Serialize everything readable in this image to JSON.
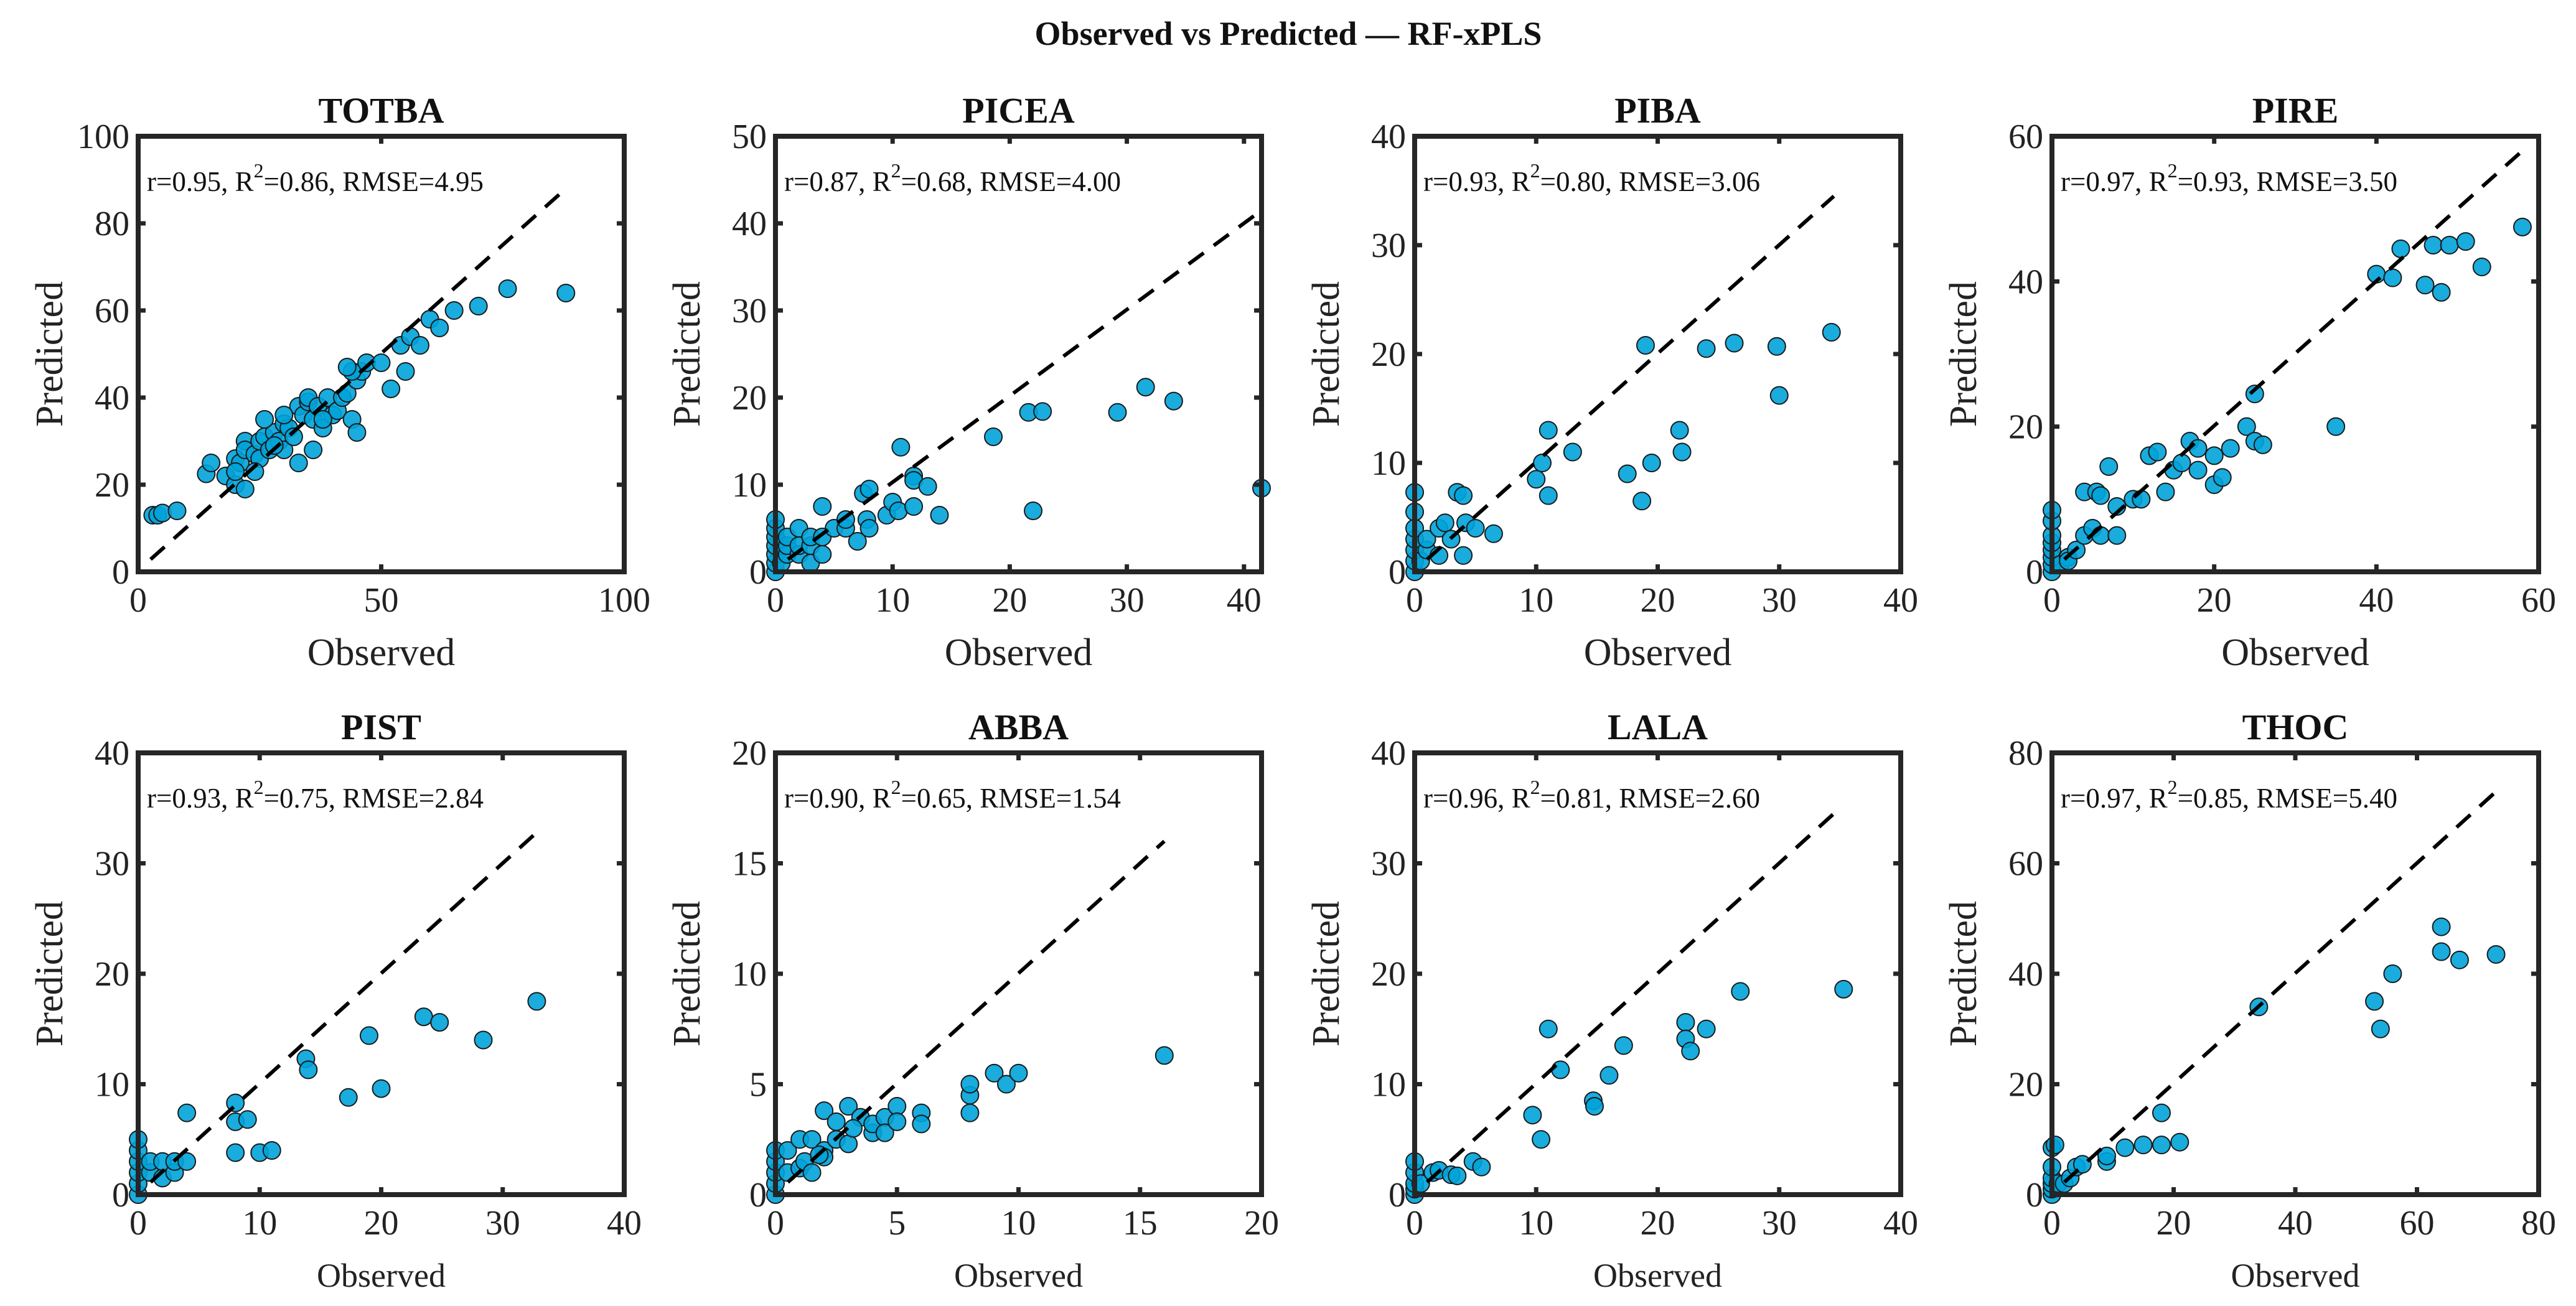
{
  "figure": {
    "title": "Observed vs Predicted — RF-xPLS",
    "xlabel": "Observed",
    "ylabel": "Predicted",
    "marker_color": "#00a3d9",
    "marker_edge": "#1a1a1a",
    "line_color": "#000000"
  },
  "chart_data": [
    {
      "type": "scatter",
      "title": "TOTBA",
      "r": "0.95",
      "r2": "0.86",
      "rmse": "4.95",
      "xlim": [
        0,
        100
      ],
      "ylim": [
        0,
        100
      ],
      "xticks": [
        0,
        50,
        100
      ],
      "yticks": [
        0,
        20,
        40,
        60,
        80,
        100
      ],
      "line_max": 87,
      "points": [
        [
          3,
          13
        ],
        [
          4,
          13
        ],
        [
          5,
          13.5
        ],
        [
          8,
          14
        ],
        [
          14,
          22.5
        ],
        [
          15,
          25
        ],
        [
          18,
          22
        ],
        [
          20,
          20
        ],
        [
          20,
          26
        ],
        [
          21,
          25
        ],
        [
          22,
          30
        ],
        [
          22,
          28
        ],
        [
          24,
          27
        ],
        [
          25,
          30
        ],
        [
          25,
          26
        ],
        [
          26,
          31
        ],
        [
          27,
          28
        ],
        [
          28,
          32
        ],
        [
          29,
          30
        ],
        [
          30,
          34
        ],
        [
          30,
          28
        ],
        [
          31,
          33
        ],
        [
          32,
          31
        ],
        [
          33,
          38
        ],
        [
          34,
          36
        ],
        [
          35,
          39
        ],
        [
          35,
          40
        ],
        [
          36,
          35
        ],
        [
          37,
          38
        ],
        [
          38,
          33
        ],
        [
          39,
          40
        ],
        [
          40,
          36
        ],
        [
          41,
          37
        ],
        [
          42,
          40
        ],
        [
          43,
          41
        ],
        [
          44,
          35
        ],
        [
          45,
          32
        ],
        [
          45,
          44
        ],
        [
          46,
          46
        ],
        [
          47,
          48
        ],
        [
          50,
          48
        ],
        [
          52,
          42
        ],
        [
          55,
          46
        ],
        [
          54,
          52
        ],
        [
          56,
          54
        ],
        [
          58,
          52
        ],
        [
          60,
          58
        ],
        [
          62,
          56
        ],
        [
          65,
          60
        ],
        [
          70,
          61
        ],
        [
          76,
          65
        ],
        [
          88,
          64
        ],
        [
          33,
          25
        ],
        [
          36,
          28
        ],
        [
          28,
          29
        ],
        [
          24,
          23
        ],
        [
          26,
          35
        ],
        [
          20,
          23
        ],
        [
          44,
          46
        ],
        [
          43,
          47
        ],
        [
          22,
          19
        ],
        [
          30,
          36
        ],
        [
          38,
          35
        ]
      ]
    },
    {
      "type": "scatter",
      "title": "PICEA",
      "r": "0.87",
      "r2": "0.68",
      "rmse": "4.00",
      "xlim": [
        0,
        41.5
      ],
      "ylim": [
        0,
        50
      ],
      "xticks": [
        0,
        10,
        20,
        30,
        40
      ],
      "yticks": [
        0,
        10,
        20,
        30,
        40,
        50
      ],
      "line_max": 41.5,
      "points": [
        [
          0,
          0
        ],
        [
          0,
          1
        ],
        [
          0,
          2
        ],
        [
          0,
          3
        ],
        [
          0,
          4
        ],
        [
          0,
          5
        ],
        [
          0,
          6
        ],
        [
          0.5,
          1
        ],
        [
          1,
          2
        ],
        [
          1,
          3
        ],
        [
          1,
          4
        ],
        [
          2,
          2
        ],
        [
          2,
          3
        ],
        [
          2,
          5
        ],
        [
          3,
          1
        ],
        [
          3,
          3
        ],
        [
          3,
          4
        ],
        [
          4,
          2
        ],
        [
          4,
          4
        ],
        [
          4,
          7.5
        ],
        [
          5,
          5
        ],
        [
          6,
          5
        ],
        [
          6,
          6
        ],
        [
          7,
          3.5
        ],
        [
          7.5,
          9
        ],
        [
          8,
          9.5
        ],
        [
          7.8,
          6
        ],
        [
          8,
          5
        ],
        [
          9.5,
          6.5
        ],
        [
          10,
          8
        ],
        [
          10.5,
          7
        ],
        [
          10.7,
          14.3
        ],
        [
          11.8,
          11
        ],
        [
          11.8,
          10.5
        ],
        [
          11.8,
          7.5
        ],
        [
          13,
          9.8
        ],
        [
          14,
          6.5
        ],
        [
          18.6,
          15.5
        ],
        [
          21.6,
          18.3
        ],
        [
          22.8,
          18.4
        ],
        [
          22,
          7
        ],
        [
          29.2,
          18.3
        ],
        [
          31.6,
          21.2
        ],
        [
          34,
          19.6
        ],
        [
          41.5,
          9.6
        ]
      ]
    },
    {
      "type": "scatter",
      "title": "PIBA",
      "r": "0.93",
      "r2": "0.80",
      "rmse": "3.06",
      "xlim": [
        0,
        40
      ],
      "ylim": [
        0,
        40
      ],
      "xticks": [
        0,
        10,
        20,
        30,
        40
      ],
      "yticks": [
        0,
        10,
        20,
        30,
        40
      ],
      "line_max": 34.5,
      "points": [
        [
          0,
          0
        ],
        [
          0,
          1
        ],
        [
          0,
          2
        ],
        [
          0,
          3
        ],
        [
          0,
          4
        ],
        [
          0,
          5.5
        ],
        [
          0,
          7.3
        ],
        [
          0.5,
          1
        ],
        [
          1,
          2
        ],
        [
          1,
          3
        ],
        [
          2,
          4
        ],
        [
          2,
          1.5
        ],
        [
          2.5,
          4.5
        ],
        [
          3,
          3
        ],
        [
          3.5,
          7.3
        ],
        [
          4,
          7
        ],
        [
          4,
          1.5
        ],
        [
          4.2,
          4.5
        ],
        [
          5,
          4
        ],
        [
          6.5,
          3.5
        ],
        [
          10,
          8.5
        ],
        [
          10.5,
          10
        ],
        [
          11,
          13
        ],
        [
          11,
          7
        ],
        [
          13,
          11
        ],
        [
          17.5,
          9
        ],
        [
          18.7,
          6.5
        ],
        [
          19,
          20.8
        ],
        [
          19.5,
          10
        ],
        [
          21.8,
          13
        ],
        [
          22,
          11
        ],
        [
          24,
          20.5
        ],
        [
          26.3,
          21
        ],
        [
          29.8,
          20.7
        ],
        [
          30,
          16.2
        ],
        [
          34.3,
          22
        ]
      ]
    },
    {
      "type": "scatter",
      "title": "PIRE",
      "r": "0.97",
      "r2": "0.93",
      "rmse": "3.50",
      "xlim": [
        0,
        60
      ],
      "ylim": [
        0,
        60
      ],
      "xticks": [
        0,
        20,
        40,
        60
      ],
      "yticks": [
        0,
        20,
        40,
        60
      ],
      "line_max": 58,
      "points": [
        [
          0,
          0
        ],
        [
          0,
          1
        ],
        [
          0,
          2
        ],
        [
          0,
          3
        ],
        [
          0,
          4
        ],
        [
          0,
          5
        ],
        [
          0,
          7
        ],
        [
          0,
          8.5
        ],
        [
          1,
          1
        ],
        [
          2,
          2
        ],
        [
          2,
          1.5
        ],
        [
          3,
          3
        ],
        [
          4,
          5
        ],
        [
          4,
          11
        ],
        [
          5,
          6
        ],
        [
          5.5,
          11
        ],
        [
          6,
          5
        ],
        [
          6,
          10.5
        ],
        [
          7,
          14.5
        ],
        [
          8,
          5
        ],
        [
          8,
          9
        ],
        [
          10,
          10
        ],
        [
          11,
          10
        ],
        [
          12,
          16
        ],
        [
          13,
          16.5
        ],
        [
          14,
          11
        ],
        [
          15,
          14
        ],
        [
          16,
          15
        ],
        [
          17,
          18
        ],
        [
          18,
          17
        ],
        [
          18,
          14
        ],
        [
          20,
          12
        ],
        [
          20,
          16
        ],
        [
          21,
          13
        ],
        [
          22,
          17
        ],
        [
          24,
          20
        ],
        [
          25,
          24.5
        ],
        [
          25,
          18
        ],
        [
          26,
          17.5
        ],
        [
          35,
          20
        ],
        [
          40,
          41
        ],
        [
          42,
          40.5
        ],
        [
          43,
          44.5
        ],
        [
          46,
          39.5
        ],
        [
          47,
          45
        ],
        [
          48,
          38.5
        ],
        [
          49,
          45
        ],
        [
          51,
          45.5
        ],
        [
          53,
          42
        ],
        [
          58,
          47.5
        ]
      ]
    },
    {
      "type": "scatter",
      "title": "PIST",
      "r": "0.93",
      "r2": "0.75",
      "rmse": "2.84",
      "xlim": [
        0,
        40
      ],
      "ylim": [
        0,
        40
      ],
      "xticks": [
        0,
        10,
        20,
        30,
        40
      ],
      "yticks": [
        0,
        10,
        20,
        30,
        40
      ],
      "line_max": 33,
      "points": [
        [
          0,
          0
        ],
        [
          0,
          1
        ],
        [
          0,
          2
        ],
        [
          0,
          3
        ],
        [
          0,
          4
        ],
        [
          0,
          5
        ],
        [
          1,
          2
        ],
        [
          1,
          3
        ],
        [
          2,
          1.5
        ],
        [
          2,
          3
        ],
        [
          3,
          2
        ],
        [
          3,
          3
        ],
        [
          4,
          7.4
        ],
        [
          4,
          3
        ],
        [
          8,
          8.3
        ],
        [
          8,
          3.8
        ],
        [
          8,
          6.6
        ],
        [
          9,
          6.8
        ],
        [
          10,
          3.8
        ],
        [
          11,
          4
        ],
        [
          13.8,
          12.3
        ],
        [
          14,
          11.3
        ],
        [
          17.3,
          8.8
        ],
        [
          19,
          14.4
        ],
        [
          20,
          9.6
        ],
        [
          23.5,
          16.1
        ],
        [
          24.8,
          15.6
        ],
        [
          28.4,
          14
        ],
        [
          32.8,
          17.5
        ]
      ]
    },
    {
      "type": "scatter",
      "title": "ABBA",
      "r": "0.90",
      "r2": "0.65",
      "rmse": "1.54",
      "xlim": [
        0,
        20
      ],
      "ylim": [
        0,
        20
      ],
      "xticks": [
        0,
        5,
        10,
        15,
        20
      ],
      "yticks": [
        0,
        5,
        10,
        15,
        20
      ],
      "line_max": 16,
      "points": [
        [
          0,
          0
        ],
        [
          0,
          0.5
        ],
        [
          0,
          1
        ],
        [
          0,
          1.5
        ],
        [
          0,
          2
        ],
        [
          0.5,
          1
        ],
        [
          0.5,
          2
        ],
        [
          1,
          1.2
        ],
        [
          1,
          2.5
        ],
        [
          1.2,
          1.5
        ],
        [
          1.5,
          2.5
        ],
        [
          1.5,
          1
        ],
        [
          2,
          2
        ],
        [
          2,
          3.8
        ],
        [
          2,
          1.7
        ],
        [
          2.5,
          2.5
        ],
        [
          2.5,
          3.3
        ],
        [
          3,
          4
        ],
        [
          3,
          2.3
        ],
        [
          3.5,
          3.5
        ],
        [
          4,
          2.8
        ],
        [
          4,
          3.2
        ],
        [
          4.5,
          3.5
        ],
        [
          4.5,
          2.8
        ],
        [
          5,
          4
        ],
        [
          5,
          3.3
        ],
        [
          6,
          3.7
        ],
        [
          6,
          3.2
        ],
        [
          8,
          3.7
        ],
        [
          8,
          4.5
        ],
        [
          8,
          5
        ],
        [
          9,
          5.5
        ],
        [
          9.5,
          5
        ],
        [
          10,
          5.5
        ],
        [
          16,
          6.3
        ],
        [
          3.2,
          3.0
        ],
        [
          1.8,
          1.8
        ]
      ]
    },
    {
      "type": "scatter",
      "title": "LALA",
      "r": "0.96",
      "r2": "0.81",
      "rmse": "2.60",
      "xlim": [
        0,
        40
      ],
      "ylim": [
        0,
        40
      ],
      "xticks": [
        0,
        10,
        20,
        30,
        40
      ],
      "yticks": [
        0,
        10,
        20,
        30,
        40
      ],
      "line_max": 35,
      "points": [
        [
          0,
          0
        ],
        [
          0,
          0.5
        ],
        [
          0,
          1
        ],
        [
          0,
          2
        ],
        [
          0,
          3
        ],
        [
          0.5,
          1
        ],
        [
          1.5,
          2
        ],
        [
          2,
          2.2
        ],
        [
          3,
          1.8
        ],
        [
          3.5,
          1.7
        ],
        [
          4.8,
          3
        ],
        [
          5.5,
          2.5
        ],
        [
          9.7,
          7.2
        ],
        [
          10.4,
          5
        ],
        [
          11,
          15
        ],
        [
          12,
          11.3
        ],
        [
          14.7,
          8.5
        ],
        [
          14.8,
          8
        ],
        [
          16,
          10.8
        ],
        [
          17.2,
          13.5
        ],
        [
          22.3,
          15.6
        ],
        [
          22.3,
          14.1
        ],
        [
          22.7,
          13
        ],
        [
          24,
          15
        ],
        [
          26.8,
          18.4
        ],
        [
          35.3,
          18.6
        ]
      ]
    },
    {
      "type": "scatter",
      "title": "THOC",
      "r": "0.97",
      "r2": "0.85",
      "rmse": "5.40",
      "xlim": [
        0,
        80
      ],
      "ylim": [
        0,
        80
      ],
      "xticks": [
        0,
        20,
        40,
        60,
        80
      ],
      "yticks": [
        0,
        20,
        40,
        60,
        80
      ],
      "line_max": 73,
      "points": [
        [
          0,
          0
        ],
        [
          0,
          1
        ],
        [
          0,
          2
        ],
        [
          0,
          3
        ],
        [
          0,
          5
        ],
        [
          0,
          8.5
        ],
        [
          0.5,
          9
        ],
        [
          1,
          2
        ],
        [
          2,
          2
        ],
        [
          3,
          3
        ],
        [
          4,
          5
        ],
        [
          5,
          5.5
        ],
        [
          9,
          6
        ],
        [
          9,
          7
        ],
        [
          12,
          8.5
        ],
        [
          15,
          9
        ],
        [
          18,
          14.8
        ],
        [
          18,
          9
        ],
        [
          21,
          9.5
        ],
        [
          34,
          34
        ],
        [
          53,
          35
        ],
        [
          54,
          30
        ],
        [
          56,
          40
        ],
        [
          64,
          48.5
        ],
        [
          64,
          44
        ],
        [
          67,
          42.5
        ],
        [
          73,
          43.5
        ]
      ]
    }
  ]
}
